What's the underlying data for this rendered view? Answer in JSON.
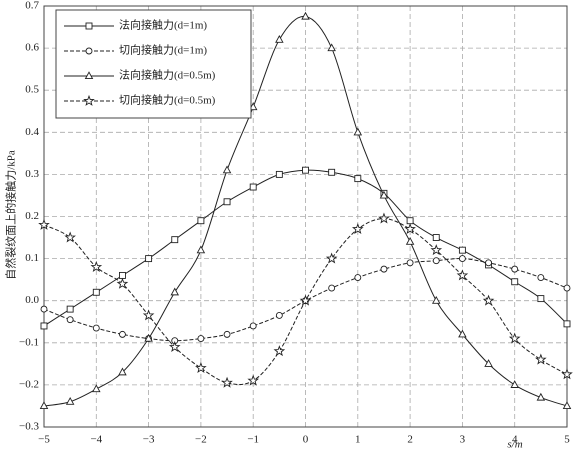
{
  "chart_data": {
    "type": "line",
    "xlabel": "s/m",
    "ylabel": "自然裂纹面上的接触力/kPa",
    "x": [
      -5,
      -4.5,
      -4,
      -3.5,
      -3,
      -2.5,
      -2,
      -1.5,
      -1,
      -0.5,
      0,
      0.5,
      1,
      1.5,
      2,
      2.5,
      3,
      3.5,
      4,
      4.5,
      5
    ],
    "series": [
      {
        "name": "法向接触力(d=1m)",
        "color": "#222222",
        "marker": "square",
        "linestyle": "solid",
        "values": [
          -0.06,
          -0.02,
          0.02,
          0.06,
          0.1,
          0.145,
          0.19,
          0.235,
          0.27,
          0.3,
          0.31,
          0.305,
          0.29,
          0.255,
          0.19,
          0.15,
          0.12,
          0.085,
          0.045,
          0.005,
          -0.055
        ]
      },
      {
        "name": "切向接触力(d=1m)",
        "color": "#222222",
        "marker": "circle",
        "linestyle": "dashed",
        "values": [
          -0.02,
          -0.045,
          -0.065,
          -0.08,
          -0.09,
          -0.095,
          -0.09,
          -0.08,
          -0.06,
          -0.035,
          0.0,
          0.03,
          0.055,
          0.075,
          0.09,
          0.095,
          0.1,
          0.09,
          0.075,
          0.055,
          0.03
        ]
      },
      {
        "name": "法向接触力(d=0.5m)",
        "color": "#222222",
        "marker": "triangle",
        "linestyle": "solid",
        "values": [
          -0.25,
          -0.24,
          -0.21,
          -0.17,
          -0.09,
          0.02,
          0.12,
          0.31,
          0.46,
          0.62,
          0.675,
          0.6,
          0.4,
          0.25,
          0.14,
          0.0,
          -0.08,
          -0.15,
          -0.2,
          -0.23,
          -0.25
        ]
      },
      {
        "name": "切向接触力(d=0.5m)",
        "color": "#222222",
        "marker": "star",
        "linestyle": "dashed",
        "values": [
          0.18,
          0.15,
          0.08,
          0.04,
          -0.035,
          -0.11,
          -0.16,
          -0.195,
          -0.19,
          -0.12,
          0.0,
          0.1,
          0.17,
          0.195,
          0.17,
          0.12,
          0.06,
          0.0,
          -0.09,
          -0.14,
          -0.175
        ]
      }
    ],
    "xlim": [
      -5,
      5
    ],
    "ylim": [
      -0.3,
      0.7
    ],
    "xticks": [
      {
        "value": -5,
        "label": "−5"
      },
      {
        "value": -4,
        "label": "−4"
      },
      {
        "value": -3,
        "label": "−3"
      },
      {
        "value": -2,
        "label": "−2"
      },
      {
        "value": -1,
        "label": "−1"
      },
      0,
      1,
      2,
      3,
      4,
      5
    ],
    "yticks": [
      {
        "value": -0.3,
        "label": "−0.3"
      },
      {
        "value": -0.2,
        "label": "−0.2"
      },
      {
        "value": -0.1,
        "label": "−0.1"
      },
      {
        "value": 0,
        "label": "0.0"
      },
      0.1,
      0.2,
      0.3,
      0.4,
      0.5,
      0.6,
      0.7
    ],
    "grid": true,
    "legend": "upper left"
  }
}
